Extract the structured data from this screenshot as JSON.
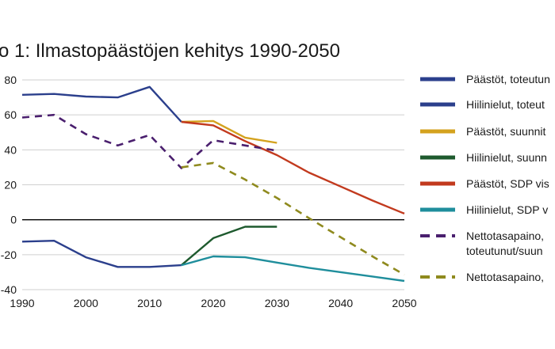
{
  "chart_data": {
    "type": "line",
    "title": "o 1: Ilmastopäästöjen kehitys 1990-2050",
    "xlabel": "",
    "ylabel": "",
    "xlim": [
      1990,
      2050
    ],
    "ylim": [
      -40,
      80
    ],
    "x_ticks": [
      "1990",
      "2000",
      "2010",
      "2020",
      "2030",
      "2040",
      "2050"
    ],
    "y_ticks": [
      "80",
      "60",
      "40",
      "20",
      "0",
      "-20",
      "-40"
    ],
    "grid": true,
    "legend_position": "right",
    "series": [
      {
        "name": "Päästöt, toteutun",
        "color": "#2b3f8c",
        "dash": false,
        "points": [
          [
            1990,
            71.5
          ],
          [
            1995,
            72
          ],
          [
            2000,
            70.5
          ],
          [
            2005,
            70
          ],
          [
            2010,
            76
          ],
          [
            2015,
            56
          ]
        ]
      },
      {
        "name": "Hiilinielut, toteut",
        "color": "#2b3f8c",
        "dash": false,
        "points": [
          [
            1990,
            -12.5
          ],
          [
            1995,
            -12
          ],
          [
            2000,
            -21.5
          ],
          [
            2005,
            -27
          ],
          [
            2010,
            -27
          ],
          [
            2015,
            -26
          ]
        ]
      },
      {
        "name": "Päästöt, suunnit",
        "color": "#d4a21e",
        "dash": false,
        "points": [
          [
            2015,
            56
          ],
          [
            2020,
            56.5
          ],
          [
            2025,
            47
          ],
          [
            2030,
            44
          ]
        ]
      },
      {
        "name": "Hiilinielut, suunn",
        "color": "#1e5a2e",
        "dash": false,
        "points": [
          [
            2015,
            -26
          ],
          [
            2020,
            -10.5
          ],
          [
            2025,
            -4
          ],
          [
            2030,
            -4
          ]
        ]
      },
      {
        "name": "Päästöt, SDP vis",
        "color": "#c23a1e",
        "dash": false,
        "points": [
          [
            2015,
            56
          ],
          [
            2020,
            54
          ],
          [
            2025,
            45
          ],
          [
            2030,
            37
          ],
          [
            2035,
            27
          ],
          [
            2040,
            19
          ],
          [
            2045,
            11
          ],
          [
            2050,
            3.5
          ]
        ]
      },
      {
        "name": "Hiilinielut, SDP v",
        "color": "#1f8e9c",
        "dash": false,
        "points": [
          [
            2015,
            -26
          ],
          [
            2020,
            -21
          ],
          [
            2025,
            -21.5
          ],
          [
            2030,
            -24.5
          ],
          [
            2035,
            -27.5
          ],
          [
            2040,
            -30
          ],
          [
            2045,
            -32.5
          ],
          [
            2050,
            -35
          ]
        ]
      },
      {
        "name": "Nettotasapaino,",
        "name_line2": "toteutunut/suun",
        "color": "#4a1f6e",
        "dash": true,
        "points": [
          [
            1990,
            58.5
          ],
          [
            1995,
            60
          ],
          [
            2000,
            49
          ],
          [
            2005,
            42.5
          ],
          [
            2010,
            48.5
          ],
          [
            2015,
            29.5
          ],
          [
            2020,
            45.5
          ],
          [
            2025,
            42.5
          ],
          [
            2030,
            39.5
          ]
        ]
      },
      {
        "name": "Nettotasapaino,",
        "color": "#8f8a1e",
        "dash": true,
        "points": [
          [
            2015,
            30
          ],
          [
            2020,
            32.5
          ],
          [
            2025,
            23
          ],
          [
            2030,
            12.5
          ],
          [
            2035,
            1
          ],
          [
            2040,
            -10
          ],
          [
            2045,
            -21
          ],
          [
            2050,
            -31.5
          ]
        ]
      }
    ]
  }
}
